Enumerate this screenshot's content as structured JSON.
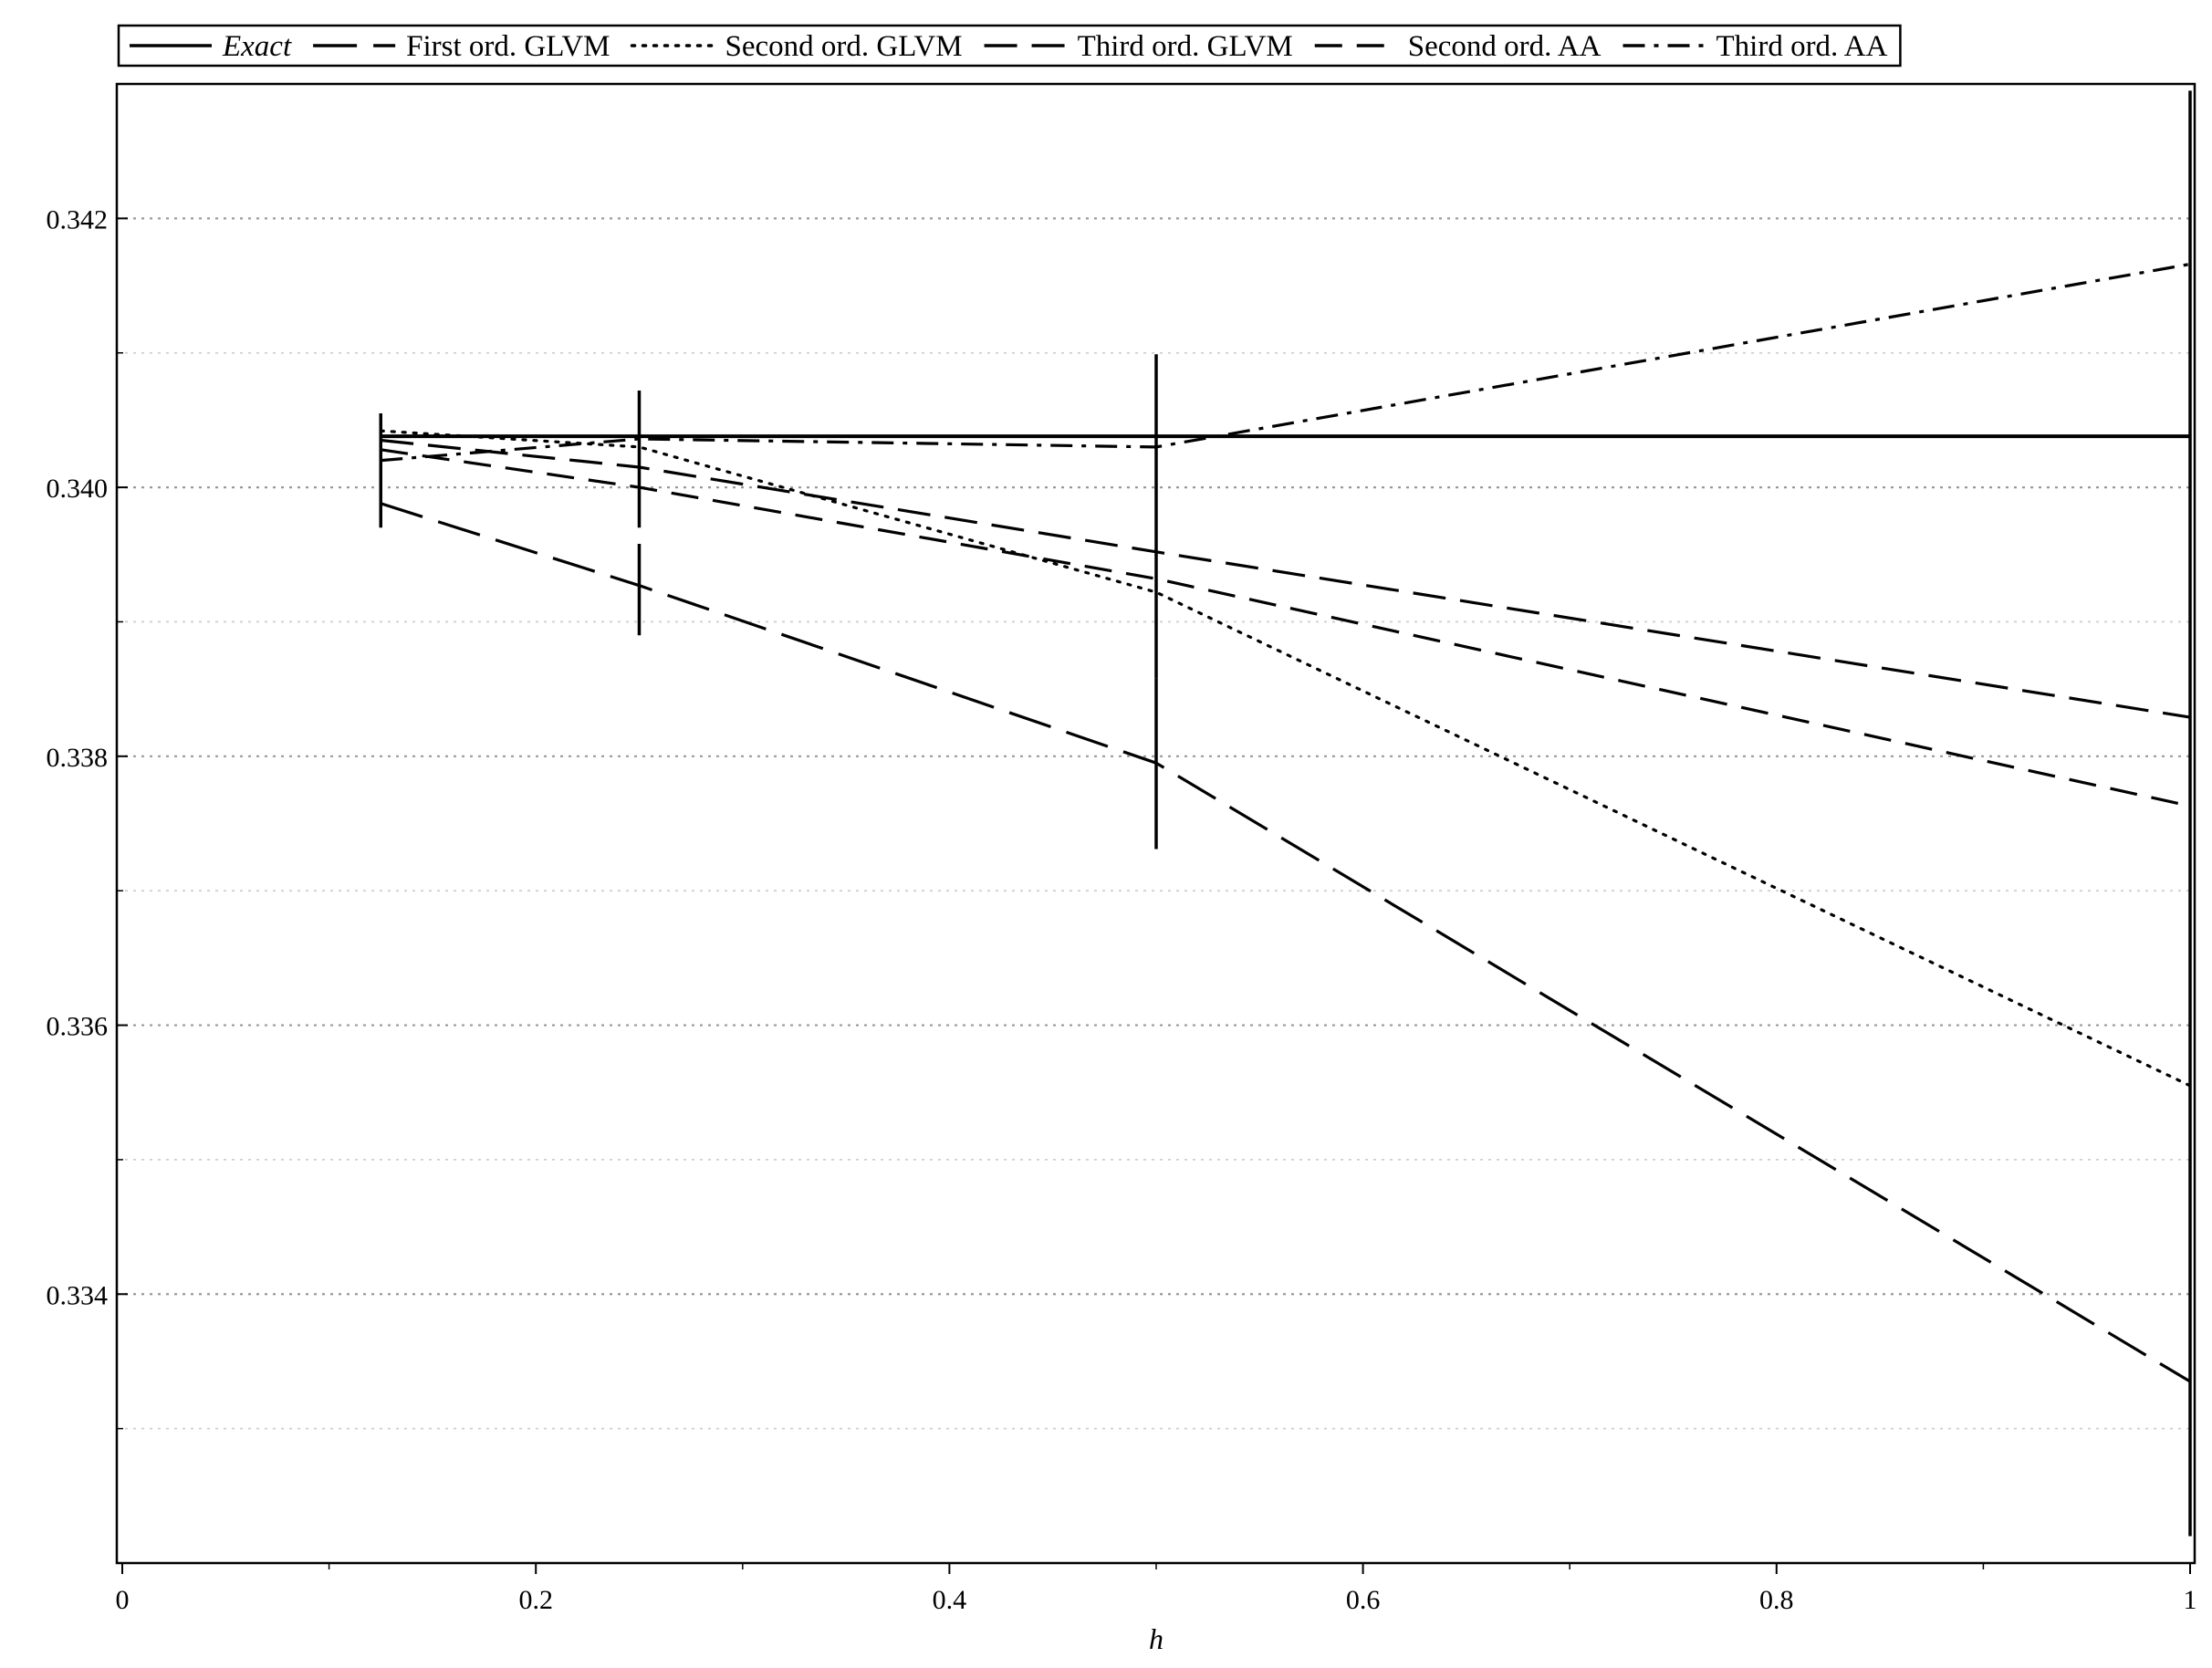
{
  "chart_data": {
    "type": "line",
    "title": "",
    "xlabel": "h",
    "ylabel": "",
    "xlim": [
      0,
      1
    ],
    "ylim": [
      0.332,
      0.343
    ],
    "x_ticks": [
      0,
      0.2,
      0.4,
      0.6,
      0.8,
      1
    ],
    "x_tick_labels": [
      "0",
      "0.2",
      "0.4",
      "0.6",
      "0.8",
      "1"
    ],
    "y_ticks": [
      0.334,
      0.336,
      0.338,
      0.34,
      0.342
    ],
    "y_tick_labels": [
      "0.334",
      "0.336",
      "0.338",
      "0.340",
      "0.342"
    ],
    "grid": {
      "horizontal": true,
      "vertical": false,
      "major_y": [
        0.334,
        0.336,
        0.338,
        0.34,
        0.342
      ],
      "minor_y": [
        0.333,
        0.335,
        0.337,
        0.339,
        0.341
      ]
    },
    "legend": {
      "placement": "top",
      "entries": [
        {
          "label": "Exact",
          "italic": true
        },
        {
          "label": "First ord. GLVM",
          "italic": false
        },
        {
          "label": "Second ord. GLVM",
          "italic": false
        },
        {
          "label": "Third ord. GLVM",
          "italic": false
        },
        {
          "label": "Second ord. AA",
          "italic": false
        },
        {
          "label": "Third ord. AA",
          "italic": false
        }
      ]
    },
    "series": [
      {
        "name": "Exact",
        "style": "solid",
        "x": [
          0.125,
          1
        ],
        "y": [
          0.34038,
          0.34038
        ]
      },
      {
        "name": "First ord. GLVM",
        "style": "long-dash",
        "x": [
          0.125,
          0.25,
          0.5,
          1
        ],
        "y": [
          0.33988,
          0.33927,
          0.33795,
          0.33335
        ]
      },
      {
        "name": "Second ord. GLVM",
        "style": "dotted",
        "x": [
          0.125,
          0.25,
          0.5,
          1
        ],
        "y": [
          0.34042,
          0.3403,
          0.33922,
          0.33555
        ]
      },
      {
        "name": "Third ord. GLVM",
        "style": "medium-dash",
        "x": [
          0.125,
          0.25,
          0.5,
          1
        ],
        "y": [
          0.34035,
          0.34015,
          0.33952,
          0.33829
        ]
      },
      {
        "name": "Second ord. AA",
        "style": "dash",
        "x": [
          0.125,
          0.25,
          0.5,
          1
        ],
        "y": [
          0.34028,
          0.34,
          0.33932,
          0.33763
        ]
      },
      {
        "name": "Third ord. AA",
        "style": "dash-dot",
        "x": [
          0.125,
          0.25,
          0.5,
          1
        ],
        "y": [
          0.3402,
          0.34036,
          0.3403,
          0.34166
        ]
      }
    ],
    "vertical_markers": [
      {
        "x": 0.125,
        "y_range": [
          0.3397,
          0.34055
        ]
      },
      {
        "x": 0.25,
        "y_range": [
          0.3397,
          0.34072
        ]
      },
      {
        "x": 0.25,
        "y_range": [
          0.3389,
          0.33958
        ]
      },
      {
        "x": 0.5,
        "y_range": [
          0.33858,
          0.34099
        ]
      },
      {
        "x": 0.5,
        "y_range": [
          0.33731,
          0.33858
        ]
      },
      {
        "x": 1,
        "y_range": [
          0.3322,
          0.34295
        ]
      }
    ]
  }
}
